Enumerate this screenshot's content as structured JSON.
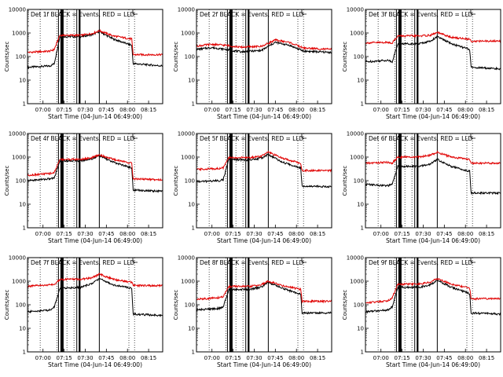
{
  "x_ticks": [
    "07:00",
    "07:15",
    "07:30",
    "07:45",
    "08:00",
    "08:15"
  ],
  "y_ticks": [
    "1",
    "10",
    "100",
    "1000",
    "10000"
  ],
  "ylabel": "Counts/sec",
  "xlabel": "Start Time (04-Jun-14 06:49:00)",
  "line_color_black": "#000000",
  "line_color_red": "#e00000",
  "chart_data": [
    {
      "type": "line",
      "title": "Det 1f BLACK = Events, RED = LLD",
      "xlabel": "Start Time (04-Jun-14 06:49:00)",
      "ylabel": "Counts/sec",
      "y_scale": "log",
      "ylim": [
        1,
        10000
      ],
      "series": [
        {
          "color": "black",
          "x": [
            "06:49",
            "07:05",
            "07:08",
            "07:12",
            "07:27",
            "07:35",
            "07:40",
            "07:50",
            "08:03",
            "08:04",
            "08:25"
          ],
          "values": [
            35,
            40,
            50,
            700,
            700,
            850,
            1150,
            550,
            300,
            50,
            40
          ]
        },
        {
          "color": "red",
          "x": [
            "06:49",
            "07:05",
            "07:08",
            "07:12",
            "07:27",
            "07:35",
            "07:40",
            "07:50",
            "08:03",
            "08:04",
            "08:25"
          ],
          "values": [
            150,
            170,
            200,
            800,
            800,
            950,
            1250,
            750,
            550,
            120,
            120
          ]
        }
      ]
    },
    {
      "type": "line",
      "title": "Det 2f BLACK = Events, RED = LLD",
      "xlabel": "Start Time (04-Jun-14 06:49:00)",
      "ylabel": "Counts/sec",
      "y_scale": "log",
      "ylim": [
        1,
        10000
      ],
      "series": [
        {
          "color": "black",
          "x": [
            "06:49",
            "07:00",
            "07:10",
            "07:20",
            "07:35",
            "07:45",
            "07:55",
            "08:05",
            "08:25"
          ],
          "values": [
            200,
            240,
            200,
            160,
            180,
            400,
            300,
            170,
            150
          ]
        },
        {
          "color": "red",
          "x": [
            "06:49",
            "07:00",
            "07:10",
            "07:20",
            "07:35",
            "07:45",
            "07:55",
            "08:05",
            "08:25"
          ],
          "values": [
            280,
            330,
            300,
            250,
            270,
            500,
            400,
            230,
            200
          ]
        }
      ]
    },
    {
      "type": "line",
      "title": "Det 3f BLACK = Events, RED = LLD",
      "xlabel": "Start Time (04-Jun-14 06:49:00)",
      "ylabel": "Counts/sec",
      "y_scale": "log",
      "ylim": [
        1,
        10000
      ],
      "series": [
        {
          "color": "black",
          "x": [
            "06:49",
            "07:05",
            "07:08",
            "07:12",
            "07:27",
            "07:35",
            "07:40",
            "07:50",
            "08:03",
            "08:04",
            "08:25"
          ],
          "values": [
            60,
            70,
            60,
            350,
            350,
            450,
            700,
            350,
            200,
            35,
            30
          ]
        },
        {
          "color": "red",
          "x": [
            "06:49",
            "07:05",
            "07:08",
            "07:12",
            "07:27",
            "07:35",
            "07:40",
            "07:50",
            "08:03",
            "08:04",
            "08:25"
          ],
          "values": [
            380,
            400,
            380,
            750,
            750,
            800,
            1050,
            650,
            550,
            450,
            450
          ]
        }
      ]
    },
    {
      "type": "line",
      "title": "Det 4f BLACK = Events, RED = LLD",
      "xlabel": "Start Time (04-Jun-14 06:49:00)",
      "ylabel": "Counts/sec",
      "y_scale": "log",
      "ylim": [
        1,
        10000
      ],
      "series": [
        {
          "color": "black",
          "x": [
            "06:49",
            "07:05",
            "07:08",
            "07:12",
            "07:27",
            "07:35",
            "07:40",
            "07:50",
            "08:03",
            "08:04",
            "08:25"
          ],
          "values": [
            100,
            120,
            130,
            700,
            700,
            850,
            1150,
            600,
            350,
            40,
            35
          ]
        },
        {
          "color": "red",
          "x": [
            "06:49",
            "07:05",
            "07:08",
            "07:12",
            "07:27",
            "07:35",
            "07:40",
            "07:50",
            "08:03",
            "08:04",
            "08:25"
          ],
          "values": [
            170,
            200,
            220,
            800,
            800,
            950,
            1250,
            800,
            550,
            120,
            110
          ]
        }
      ]
    },
    {
      "type": "line",
      "title": "Det 5f BLACK = Events, RED = LLD",
      "xlabel": "Start Time (04-Jun-14 06:49:00)",
      "ylabel": "Counts/sec",
      "y_scale": "log",
      "ylim": [
        1,
        10000
      ],
      "series": [
        {
          "color": "black",
          "x": [
            "06:49",
            "07:05",
            "07:08",
            "07:12",
            "07:27",
            "07:35",
            "07:40",
            "07:50",
            "08:03",
            "08:04",
            "08:25"
          ],
          "values": [
            90,
            100,
            110,
            800,
            750,
            900,
            1300,
            600,
            350,
            60,
            55
          ]
        },
        {
          "color": "red",
          "x": [
            "06:49",
            "07:05",
            "07:08",
            "07:12",
            "07:27",
            "07:35",
            "07:40",
            "07:50",
            "08:03",
            "08:04",
            "08:25"
          ],
          "values": [
            300,
            330,
            350,
            950,
            950,
            1100,
            1600,
            900,
            550,
            270,
            270
          ]
        }
      ]
    },
    {
      "type": "line",
      "title": "Det 6f BLACK = Events, RED = LLD",
      "xlabel": "Start Time (04-Jun-14 06:49:00)",
      "ylabel": "Counts/sec",
      "y_scale": "log",
      "ylim": [
        1,
        10000
      ],
      "series": [
        {
          "color": "black",
          "x": [
            "06:49",
            "07:05",
            "07:08",
            "07:12",
            "07:27",
            "07:35",
            "07:40",
            "07:50",
            "08:03",
            "08:04",
            "08:25"
          ],
          "values": [
            70,
            60,
            70,
            400,
            400,
            500,
            800,
            400,
            250,
            30,
            30
          ]
        },
        {
          "color": "red",
          "x": [
            "06:49",
            "07:05",
            "07:08",
            "07:12",
            "07:27",
            "07:35",
            "07:40",
            "07:50",
            "08:03",
            "08:04",
            "08:25"
          ],
          "values": [
            550,
            600,
            550,
            1000,
            1000,
            1200,
            1600,
            1000,
            800,
            550,
            550
          ]
        }
      ]
    },
    {
      "type": "line",
      "title": "Det 7f BLACK = Events, RED = LLD",
      "xlabel": "Start Time (04-Jun-14 06:49:00)",
      "ylabel": "Counts/sec",
      "y_scale": "log",
      "ylim": [
        1,
        10000
      ],
      "series": [
        {
          "color": "black",
          "x": [
            "06:49",
            "07:05",
            "07:08",
            "07:12",
            "07:27",
            "07:35",
            "07:40",
            "07:50",
            "08:03",
            "08:04",
            "08:25"
          ],
          "values": [
            50,
            60,
            80,
            500,
            550,
            800,
            1300,
            700,
            500,
            40,
            35
          ]
        },
        {
          "color": "red",
          "x": [
            "06:49",
            "07:05",
            "07:08",
            "07:12",
            "07:27",
            "07:35",
            "07:40",
            "07:50",
            "08:03",
            "08:04",
            "08:25"
          ],
          "values": [
            600,
            700,
            700,
            1200,
            1200,
            1400,
            2000,
            1200,
            900,
            650,
            650
          ]
        }
      ]
    },
    {
      "type": "line",
      "title": "Det 8f BLACK = Events, RED = LLD",
      "xlabel": "Start Time (04-Jun-14 06:49:00)",
      "ylabel": "Counts/sec",
      "y_scale": "log",
      "ylim": [
        1,
        10000
      ],
      "series": [
        {
          "color": "black",
          "x": [
            "06:49",
            "07:05",
            "07:08",
            "07:12",
            "07:27",
            "07:35",
            "07:40",
            "07:50",
            "08:03",
            "08:04",
            "08:25"
          ],
          "values": [
            60,
            70,
            80,
            450,
            450,
            550,
            900,
            500,
            280,
            45,
            45
          ]
        },
        {
          "color": "red",
          "x": [
            "06:49",
            "07:05",
            "07:08",
            "07:12",
            "07:27",
            "07:35",
            "07:40",
            "07:50",
            "08:03",
            "08:04",
            "08:25"
          ],
          "values": [
            170,
            200,
            220,
            600,
            600,
            700,
            1000,
            650,
            450,
            140,
            140
          ]
        }
      ]
    },
    {
      "type": "line",
      "title": "Det 9f BLACK = Events, RED = LLD",
      "xlabel": "Start Time (04-Jun-14 06:49:00)",
      "ylabel": "Counts/sec",
      "y_scale": "log",
      "ylim": [
        1,
        10000
      ],
      "series": [
        {
          "color": "black",
          "x": [
            "06:49",
            "07:05",
            "07:08",
            "07:12",
            "07:27",
            "07:35",
            "07:40",
            "07:50",
            "08:03",
            "08:04",
            "08:25"
          ],
          "values": [
            50,
            60,
            80,
            550,
            550,
            700,
            1100,
            550,
            300,
            45,
            40
          ]
        },
        {
          "color": "red",
          "x": [
            "06:49",
            "07:05",
            "07:08",
            "07:12",
            "07:27",
            "07:35",
            "07:40",
            "07:50",
            "08:03",
            "08:04",
            "08:25"
          ],
          "values": [
            120,
            150,
            200,
            750,
            750,
            900,
            1300,
            750,
            500,
            180,
            180
          ]
        }
      ]
    }
  ]
}
